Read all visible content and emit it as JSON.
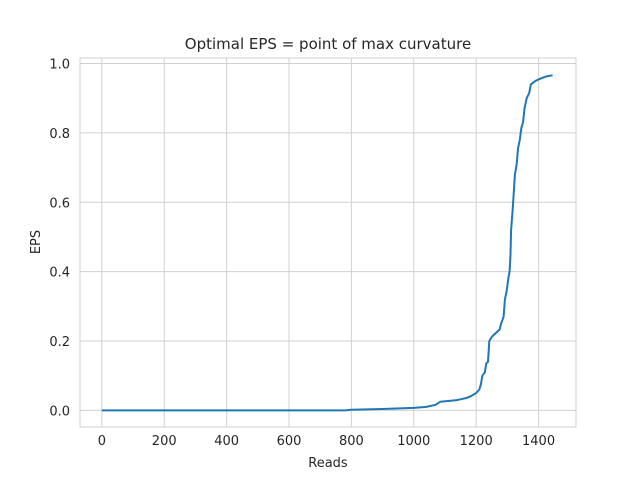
{
  "chart_data": {
    "type": "line",
    "title": "Optimal EPS = point of max curvature",
    "xlabel": "Reads",
    "ylabel": "EPS",
    "xlim": [
      -70,
      1520
    ],
    "ylim": [
      -0.048,
      1.016
    ],
    "xticks": [
      0,
      200,
      400,
      600,
      800,
      1000,
      1200,
      1400
    ],
    "yticks": [
      0.0,
      0.2,
      0.4,
      0.6,
      0.8,
      1.0
    ],
    "xtick_labels": [
      "0",
      "200",
      "400",
      "600",
      "800",
      "1000",
      "1200",
      "1400"
    ],
    "ytick_labels": [
      "0.0",
      "0.2",
      "0.4",
      "0.6",
      "0.8",
      "1.0"
    ],
    "grid": true,
    "series": [
      {
        "color": "#1f77b4",
        "points": [
          [
            0,
            0.0
          ],
          [
            200,
            0.0
          ],
          [
            400,
            0.0
          ],
          [
            600,
            0.0
          ],
          [
            780,
            0.0
          ],
          [
            800,
            0.002
          ],
          [
            900,
            0.004
          ],
          [
            1000,
            0.007
          ],
          [
            1040,
            0.01
          ],
          [
            1070,
            0.016
          ],
          [
            1085,
            0.025
          ],
          [
            1110,
            0.027
          ],
          [
            1135,
            0.029
          ],
          [
            1150,
            0.032
          ],
          [
            1170,
            0.036
          ],
          [
            1185,
            0.042
          ],
          [
            1200,
            0.05
          ],
          [
            1210,
            0.06
          ],
          [
            1215,
            0.075
          ],
          [
            1220,
            0.1
          ],
          [
            1228,
            0.11
          ],
          [
            1232,
            0.135
          ],
          [
            1238,
            0.14
          ],
          [
            1242,
            0.2
          ],
          [
            1250,
            0.212
          ],
          [
            1262,
            0.222
          ],
          [
            1275,
            0.233
          ],
          [
            1280,
            0.25
          ],
          [
            1288,
            0.27
          ],
          [
            1292,
            0.32
          ],
          [
            1298,
            0.345
          ],
          [
            1303,
            0.38
          ],
          [
            1307,
            0.4
          ],
          [
            1310,
            0.45
          ],
          [
            1312,
            0.52
          ],
          [
            1317,
            0.58
          ],
          [
            1320,
            0.62
          ],
          [
            1324,
            0.68
          ],
          [
            1330,
            0.71
          ],
          [
            1334,
            0.755
          ],
          [
            1340,
            0.78
          ],
          [
            1345,
            0.815
          ],
          [
            1350,
            0.83
          ],
          [
            1355,
            0.87
          ],
          [
            1362,
            0.9
          ],
          [
            1370,
            0.915
          ],
          [
            1375,
            0.94
          ],
          [
            1390,
            0.95
          ],
          [
            1410,
            0.958
          ],
          [
            1425,
            0.963
          ],
          [
            1445,
            0.966
          ]
        ]
      }
    ]
  }
}
